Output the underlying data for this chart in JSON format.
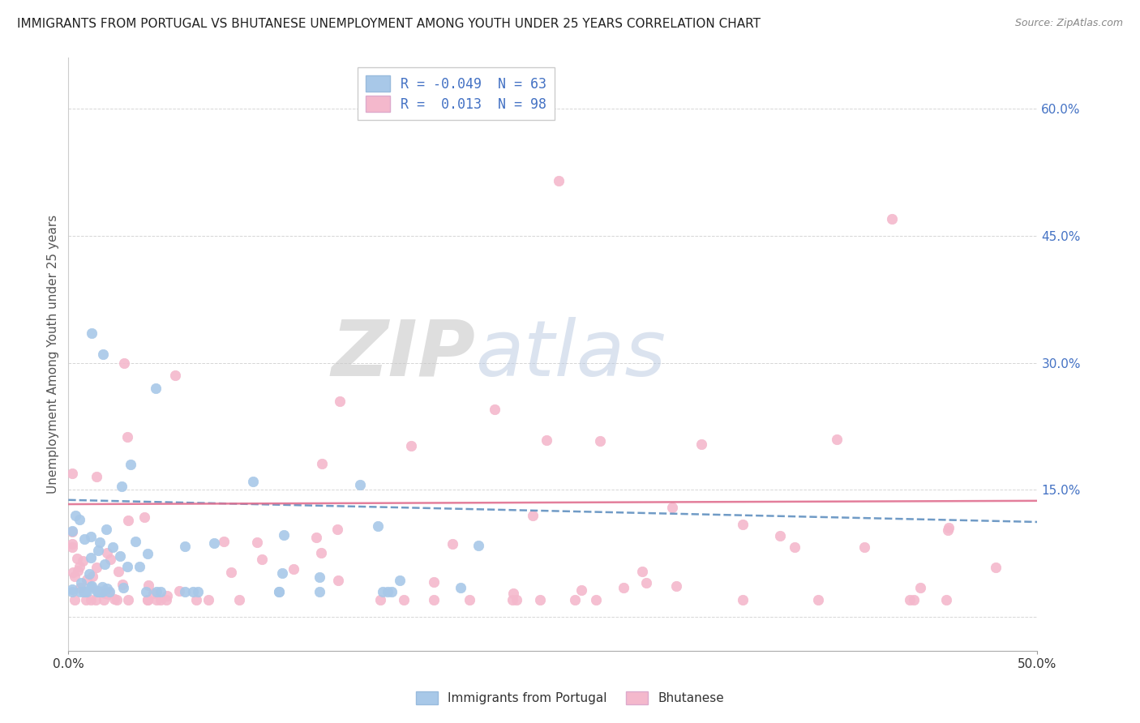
{
  "title": "IMMIGRANTS FROM PORTUGAL VS BHUTANESE UNEMPLOYMENT AMONG YOUTH UNDER 25 YEARS CORRELATION CHART",
  "source": "Source: ZipAtlas.com",
  "ylabel_label": "Unemployment Among Youth under 25 years",
  "ytick_vals": [
    0.0,
    0.15,
    0.3,
    0.45,
    0.6
  ],
  "ytick_labels": [
    "",
    "15.0%",
    "30.0%",
    "45.0%",
    "60.0%"
  ],
  "xlim": [
    0.0,
    0.5
  ],
  "ylim": [
    -0.04,
    0.66
  ],
  "blue_color": "#a8c8e8",
  "pink_color": "#f4b8cc",
  "blue_line_color": "#6090c0",
  "pink_line_color": "#e07090",
  "blue_R": -0.049,
  "blue_N": 63,
  "pink_R": 0.013,
  "pink_N": 98,
  "legend_label_blue": "Immigrants from Portugal",
  "legend_label_pink": "Bhutanese",
  "watermark_zip": "ZIP",
  "watermark_atlas": "atlas",
  "marker_size": 80
}
